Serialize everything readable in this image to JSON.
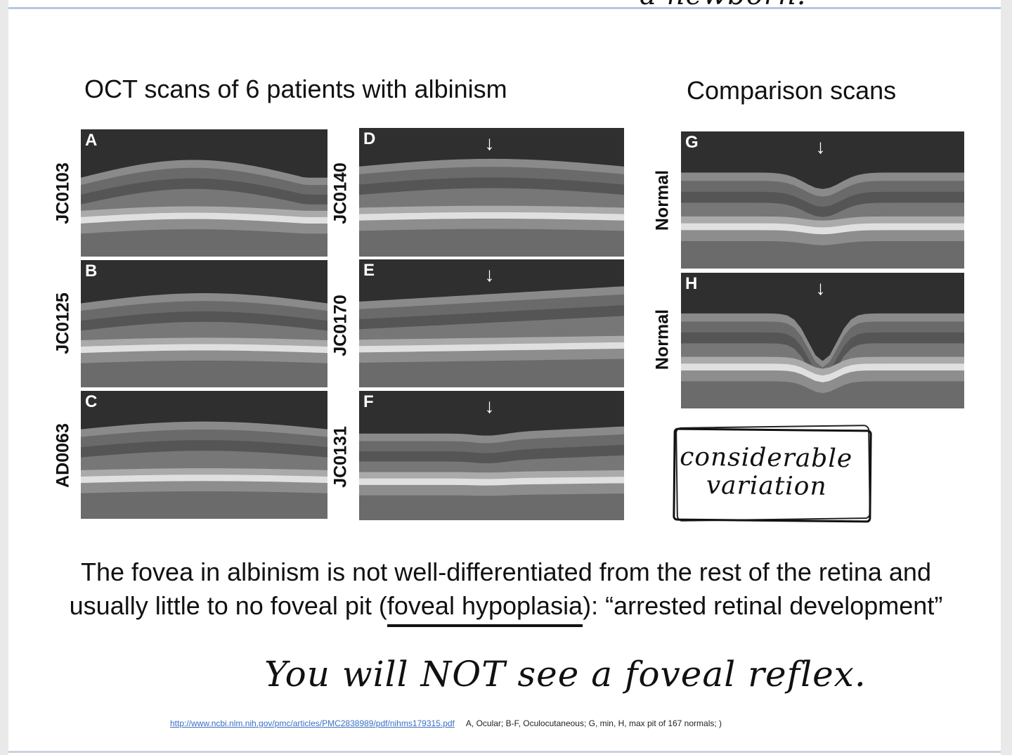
{
  "top_handwriting": "a newborn.",
  "left_heading": "OCT scans of 6 patients with albinism",
  "right_heading": "Comparison scans",
  "scans": [
    {
      "letter": "A",
      "label": "JC0103",
      "fovea_arrow": false
    },
    {
      "letter": "B",
      "label": "JC0125",
      "fovea_arrow": false
    },
    {
      "letter": "C",
      "label": "AD0063",
      "fovea_arrow": false
    },
    {
      "letter": "D",
      "label": "JC0140",
      "fovea_arrow": true
    },
    {
      "letter": "E",
      "label": "JC0170",
      "fovea_arrow": true
    },
    {
      "letter": "F",
      "label": "JC0131",
      "fovea_arrow": true
    },
    {
      "letter": "G",
      "label": "Normal",
      "fovea_arrow": true
    },
    {
      "letter": "H",
      "label": "Normal",
      "fovea_arrow": true
    }
  ],
  "arrow_glyph": "↓",
  "annotation_box": {
    "line1": "considerable",
    "line2": "variation"
  },
  "caption": {
    "line1": "The fovea in albinism is not well-differentiated from the rest of the retina and",
    "line2_before": "usually little to no foveal pit (",
    "line2_underlined": "foveal hypoplasia",
    "line2_after": "): “arrested retinal development”"
  },
  "handwritten_note": "You will NOT see a foveal reflex.",
  "footer": {
    "link": "http://www.ncbi.nlm.nih.gov/pmc/articles/PMC2838989/pdf/nihms179315.pdf",
    "note": "A, Ocular; B-F, Oculocutaneous; G, min, H, max pit of 167 normals; )"
  },
  "colors": {
    "link": "#3a6fc4",
    "rule": "#b9c6db"
  }
}
